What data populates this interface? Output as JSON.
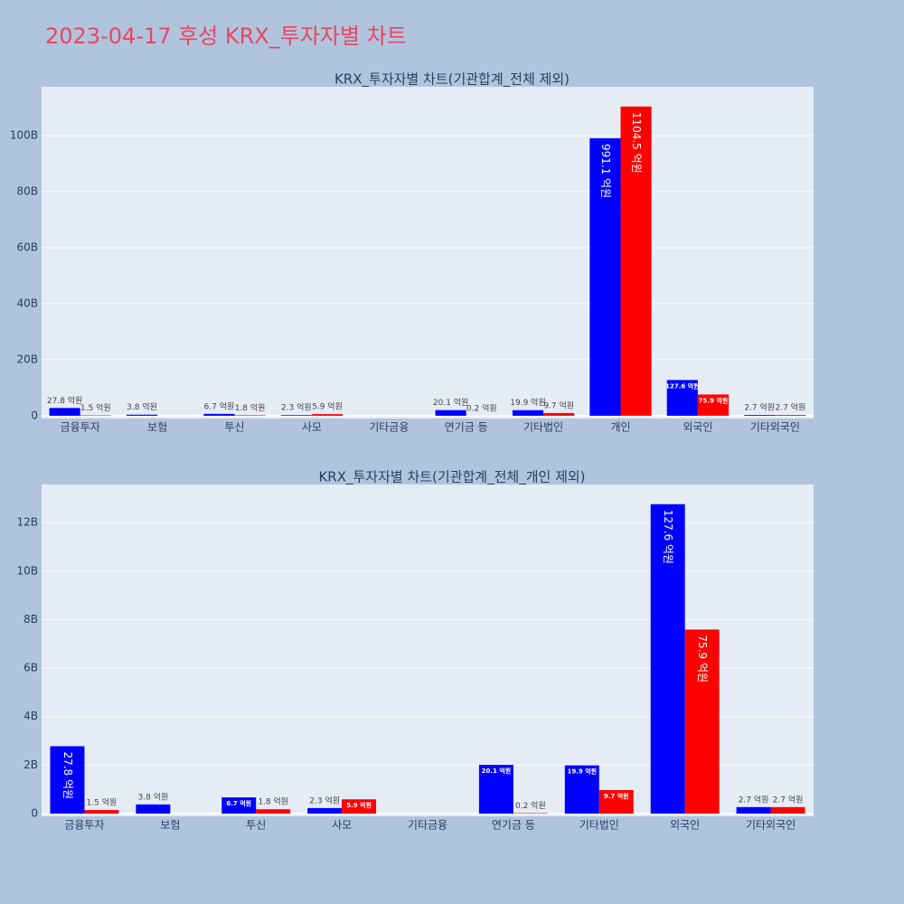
{
  "title": "2023-04-17 후성 KRX_투자자별 차트",
  "chart_data": [
    {
      "type": "bar",
      "title": "KRX_투자자별 차트(기관합계_전체 제외)",
      "categories": [
        "금융투자",
        "보험",
        "투신",
        "사모",
        "기타금융",
        "연기금 등",
        "기타법인",
        "개인",
        "외국인",
        "기타외국인"
      ],
      "series": [
        {
          "color": "#0000ff",
          "values": [
            2780000000,
            380000000,
            670000000,
            230000000,
            null,
            2010000000,
            1990000000,
            99110000000,
            12760000000,
            270000000
          ],
          "value_labels": [
            "27.8 억원",
            "3.8 억원",
            "6.7 억원",
            "2.3 억원",
            null,
            "20.1 억원",
            "19.9 억원",
            "991.1 억원",
            "127.6 억원",
            "2.7 억원"
          ]
        },
        {
          "color": "#ff0000",
          "values": [
            150000000,
            null,
            180000000,
            590000000,
            null,
            20000000,
            970000000,
            110450000000,
            7590000000,
            270000000
          ],
          "value_labels": [
            "1.5 억원",
            null,
            "1.8 억원",
            "5.9 억원",
            null,
            "0.2 억원",
            "9.7 억원",
            "1104.5 억원",
            "75.9 억원",
            "2.7 억원"
          ]
        }
      ],
      "ylim": [
        -1000000000,
        117500000000
      ],
      "yticks": [
        0,
        {
          "value": 20000000000,
          "label": "20B"
        },
        {
          "value": 40000000000,
          "label": "40B"
        },
        {
          "value": 60000000000,
          "label": "60B"
        },
        {
          "value": 80000000000,
          "label": "80B"
        },
        {
          "value": 100000000000,
          "label": "100B"
        }
      ],
      "grid": true
    },
    {
      "type": "bar",
      "title": "KRX_투자자별 차트(기관합계_전체_개인 제외)",
      "categories": [
        "금융투자",
        "보험",
        "투신",
        "사모",
        "기타금융",
        "연기금 등",
        "기타법인",
        "외국인",
        "기타외국인"
      ],
      "series": [
        {
          "color": "#0000ff",
          "values": [
            2780000000,
            380000000,
            670000000,
            230000000,
            null,
            2010000000,
            1990000000,
            12760000000,
            270000000
          ],
          "value_labels": [
            "27.8 억원",
            "3.8 억원",
            "6.7 억원",
            "2.3 억원",
            null,
            "20.1 억원",
            "19.9 억원",
            "127.6 억원",
            "2.7 억원"
          ]
        },
        {
          "color": "#ff0000",
          "values": [
            150000000,
            null,
            180000000,
            590000000,
            null,
            20000000,
            970000000,
            7590000000,
            270000000
          ],
          "value_labels": [
            "1.5 억원",
            null,
            "1.8 억원",
            "5.9 억원",
            null,
            "0.2 억원",
            "9.7 억원",
            "75.9 억원",
            "2.7 억원"
          ]
        }
      ],
      "ylim": [
        -110000000,
        13570000000
      ],
      "yticks": [
        0,
        {
          "value": 2000000000,
          "label": "2B"
        },
        {
          "value": 4000000000,
          "label": "4B"
        },
        {
          "value": 6000000000,
          "label": "6B"
        },
        {
          "value": 8000000000,
          "label": "8B"
        },
        {
          "value": 10000000000,
          "label": "10B"
        },
        {
          "value": 12000000000,
          "label": "12B"
        }
      ],
      "grid": true
    }
  ]
}
